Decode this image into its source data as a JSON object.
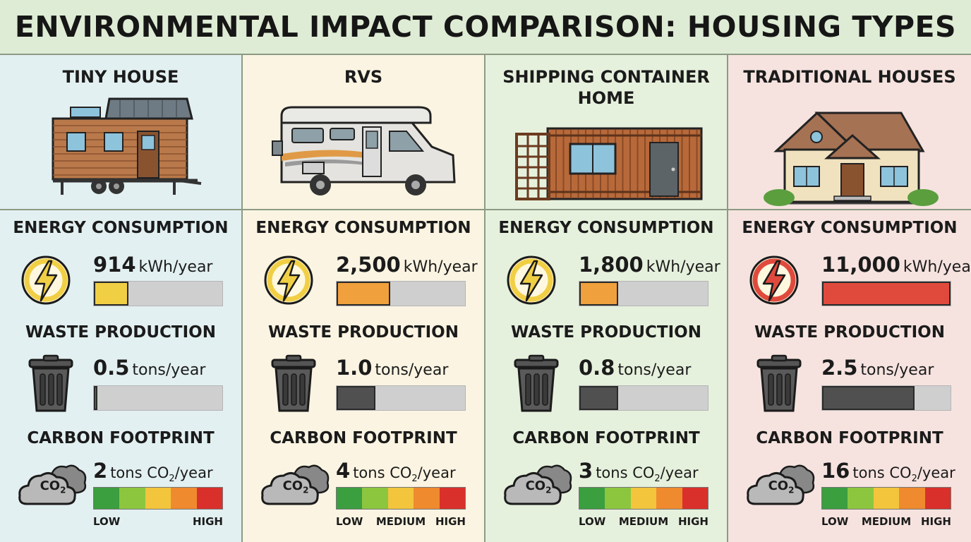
{
  "title": "ENVIRONMENTAL IMPACT COMPARISON: HOUSING TYPES",
  "sections": {
    "energy": "ENERGY CONSUMPTION",
    "waste": "WASTE PRODUCTION",
    "carbon": "CARBON FOOTPRINT"
  },
  "units": {
    "energy": "kWh/year",
    "waste": "tons/year",
    "carbon_prefix": "tons CO",
    "carbon_sub": "2",
    "carbon_suffix": "/year"
  },
  "scale": {
    "low": "LOW",
    "medium": "MEDIUM",
    "high": "HIGH"
  },
  "scale_colors": [
    "#3b9e3f",
    "#8cc63f",
    "#f2c53d",
    "#ef8a2f",
    "#d9302b"
  ],
  "co2_label": "CO",
  "co2_sub": "2",
  "columns": [
    {
      "name": "TINY HOUSE",
      "energy_value": "914",
      "energy_fraction": 0.27,
      "energy_color": "#f1cf45",
      "energy_icon_color": "#f1cf45",
      "waste_value": "0.5",
      "waste_fraction": 0.02,
      "waste_color": "#3f8e3f",
      "carbon_value": "2",
      "show_medium": false
    },
    {
      "name": "RVS",
      "energy_value": "2,500",
      "energy_fraction": 0.42,
      "energy_color": "#f0a03c",
      "energy_icon_color": "#f1cf45",
      "waste_value": "1.0",
      "waste_fraction": 0.3,
      "waste_color": "#505050",
      "carbon_value": "4",
      "show_medium": true
    },
    {
      "name": "SHIPPING CONTAINER HOME",
      "energy_value": "1,800",
      "energy_fraction": 0.3,
      "energy_color": "#f0a03c",
      "energy_icon_color": "#f1cf45",
      "waste_value": "0.8",
      "waste_fraction": 0.3,
      "waste_color": "#505050",
      "carbon_value": "3",
      "show_medium": true
    },
    {
      "name": "TRADITIONAL HOUSES",
      "energy_value": "11,000",
      "energy_fraction": 1.0,
      "energy_color": "#e04a3d",
      "energy_icon_color": "#e04a3d",
      "waste_value": "2.5",
      "waste_fraction": 0.72,
      "waste_color": "#505050",
      "carbon_value": "16",
      "show_medium": true
    }
  ]
}
